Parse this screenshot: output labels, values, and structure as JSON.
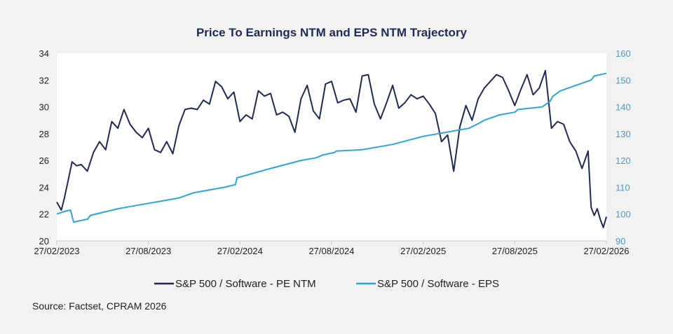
{
  "chart_data": {
    "type": "line",
    "title": "Price To Earnings NTM and EPS NTM Trajectory",
    "x_ticks": [
      "27/02/2023",
      "27/08/2023",
      "27/02/2024",
      "27/08/2024",
      "27/02/2025",
      "27/08/2025",
      "27/02/2026"
    ],
    "x_range": [
      0,
      36
    ],
    "y_left": {
      "min": 20,
      "max": 34,
      "ticks": [
        "20",
        "22",
        "24",
        "26",
        "28",
        "30",
        "32",
        "34"
      ]
    },
    "y_right": {
      "min": 90,
      "max": 160,
      "ticks": [
        "90",
        "100",
        "110",
        "120",
        "130",
        "140",
        "150",
        "160"
      ]
    },
    "grid": false,
    "legend_position": "bottom",
    "series": [
      {
        "name": "S&P 500 / Software - PE NTM",
        "axis": "left",
        "color": "#1f2a55",
        "x": [
          0,
          0.3,
          0.5,
          0.8,
          1.0,
          1.3,
          1.6,
          2.0,
          2.4,
          2.8,
          3.2,
          3.6,
          4.0,
          4.4,
          4.8,
          5.2,
          5.6,
          6.0,
          6.4,
          6.8,
          7.2,
          7.6,
          8.0,
          8.4,
          8.8,
          9.2,
          9.6,
          10.0,
          10.4,
          10.8,
          11.2,
          11.6,
          12.0,
          12.4,
          12.8,
          13.2,
          13.6,
          14.0,
          14.4,
          14.8,
          15.2,
          15.6,
          16.0,
          16.4,
          16.8,
          17.2,
          17.6,
          18.0,
          18.4,
          18.8,
          19.2,
          19.6,
          20.0,
          20.4,
          20.8,
          21.2,
          21.6,
          22.0,
          22.4,
          22.8,
          23.2,
          23.6,
          24.0,
          24.4,
          24.8,
          25.2,
          25.6,
          26.0,
          26.4,
          26.8,
          27.2,
          27.6,
          28.0,
          28.4,
          28.8,
          29.2,
          29.6,
          30.0,
          30.4,
          30.8,
          31.2,
          31.6,
          32.0,
          32.4,
          32.8,
          33.2,
          33.6,
          34.0,
          34.4,
          34.8,
          35.0,
          35.2,
          35.4,
          35.6,
          35.8,
          36.0
        ],
        "values": [
          22.9,
          22.3,
          23.2,
          24.8,
          25.9,
          25.6,
          25.7,
          25.2,
          26.6,
          27.4,
          26.8,
          28.9,
          28.4,
          29.8,
          28.7,
          28.1,
          27.7,
          28.4,
          26.8,
          26.6,
          27.4,
          26.5,
          28.6,
          29.8,
          29.9,
          29.8,
          30.5,
          30.2,
          31.9,
          31.5,
          30.6,
          31.1,
          28.9,
          29.4,
          29.1,
          31.2,
          30.8,
          31.0,
          29.4,
          29.6,
          29.3,
          28.1,
          30.6,
          31.6,
          29.7,
          29.1,
          31.7,
          31.9,
          30.3,
          30.5,
          30.6,
          29.6,
          32.3,
          32.4,
          30.2,
          29.1,
          30.3,
          31.6,
          29.9,
          30.3,
          30.9,
          30.6,
          30.8,
          30.2,
          29.5,
          27.4,
          27.9,
          25.2,
          28.5,
          30.1,
          29.0,
          30.6,
          31.4,
          31.9,
          32.4,
          32.2,
          31.2,
          30.1,
          31.3,
          32.4,
          30.9,
          31.4,
          32.7,
          28.4,
          28.9,
          28.7,
          27.4,
          26.7,
          25.4,
          26.7,
          22.5,
          21.9,
          22.4,
          21.6,
          21.0,
          21.8
        ]
      },
      {
        "name": "S&P 500 / Software -  EPS",
        "axis": "right",
        "color": "#2aa6d8",
        "x": [
          0,
          0.5,
          0.9,
          1.1,
          1.9,
          2.0,
          2.2,
          4.0,
          5.0,
          7.0,
          8.0,
          9.0,
          11.0,
          11.7,
          11.8,
          14.0,
          16.0,
          17.0,
          17.4,
          18.2,
          18.3,
          20.0,
          22.0,
          24.0,
          26.0,
          27.0,
          27.7,
          28.0,
          29.0,
          30.0,
          30.2,
          31.0,
          31.8,
          32.3,
          32.5,
          33.0,
          34.0,
          35.0,
          35.2,
          36.0
        ],
        "values": [
          100,
          101,
          101.5,
          97,
          98,
          98,
          99.5,
          102,
          103,
          105,
          106,
          108,
          110,
          111,
          113.5,
          117,
          120,
          121,
          122,
          123,
          123.5,
          124,
          126,
          129,
          131,
          132,
          134,
          135,
          137,
          138,
          139,
          139.5,
          140,
          142,
          144,
          146,
          148,
          150,
          151.5,
          152.5
        ]
      }
    ]
  },
  "source": "Source: Factset, CPRAM 2026"
}
